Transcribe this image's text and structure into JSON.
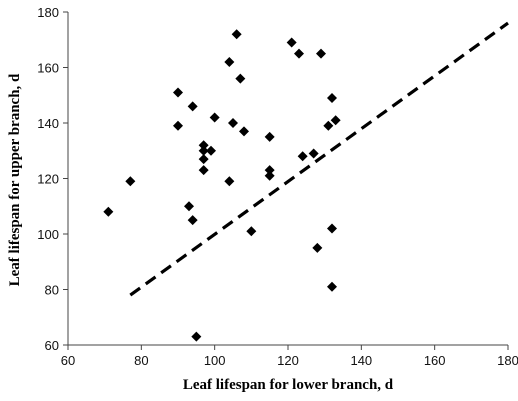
{
  "chart_data": {
    "type": "scatter",
    "xlabel": "Leaf lifespan  for lower branch, d",
    "ylabel": "Leaf lifespan  for upper branch, d",
    "xlim": [
      60,
      180
    ],
    "ylim": [
      60,
      180
    ],
    "xticks": [
      "60",
      "80",
      "100",
      "120",
      "140",
      "160",
      "180"
    ],
    "yticks": [
      "60",
      "80",
      "100",
      "120",
      "140",
      "160",
      "180"
    ],
    "marker": "diamond",
    "colors": {
      "points": "#000000",
      "axes": "#444444",
      "reference_line": "#000000"
    },
    "reference_line": {
      "style": "dashed",
      "from": [
        77,
        78
      ],
      "to": [
        180,
        176
      ]
    },
    "points": [
      {
        "x": 71,
        "y": 108
      },
      {
        "x": 77,
        "y": 119
      },
      {
        "x": 90,
        "y": 151
      },
      {
        "x": 90,
        "y": 139
      },
      {
        "x": 93,
        "y": 110
      },
      {
        "x": 94,
        "y": 146
      },
      {
        "x": 94,
        "y": 105
      },
      {
        "x": 95,
        "y": 63
      },
      {
        "x": 97,
        "y": 132
      },
      {
        "x": 97,
        "y": 130
      },
      {
        "x": 97,
        "y": 127
      },
      {
        "x": 97,
        "y": 123
      },
      {
        "x": 99,
        "y": 130
      },
      {
        "x": 100,
        "y": 142
      },
      {
        "x": 104,
        "y": 162
      },
      {
        "x": 104,
        "y": 119
      },
      {
        "x": 105,
        "y": 140
      },
      {
        "x": 106,
        "y": 172
      },
      {
        "x": 107,
        "y": 156
      },
      {
        "x": 108,
        "y": 137
      },
      {
        "x": 110,
        "y": 101
      },
      {
        "x": 115,
        "y": 135
      },
      {
        "x": 115,
        "y": 123
      },
      {
        "x": 115,
        "y": 121
      },
      {
        "x": 121,
        "y": 169
      },
      {
        "x": 123,
        "y": 165
      },
      {
        "x": 124,
        "y": 128
      },
      {
        "x": 127,
        "y": 129
      },
      {
        "x": 128,
        "y": 95
      },
      {
        "x": 129,
        "y": 165
      },
      {
        "x": 131,
        "y": 139
      },
      {
        "x": 132,
        "y": 149
      },
      {
        "x": 133,
        "y": 141
      },
      {
        "x": 132,
        "y": 102
      },
      {
        "x": 132,
        "y": 81
      }
    ]
  }
}
